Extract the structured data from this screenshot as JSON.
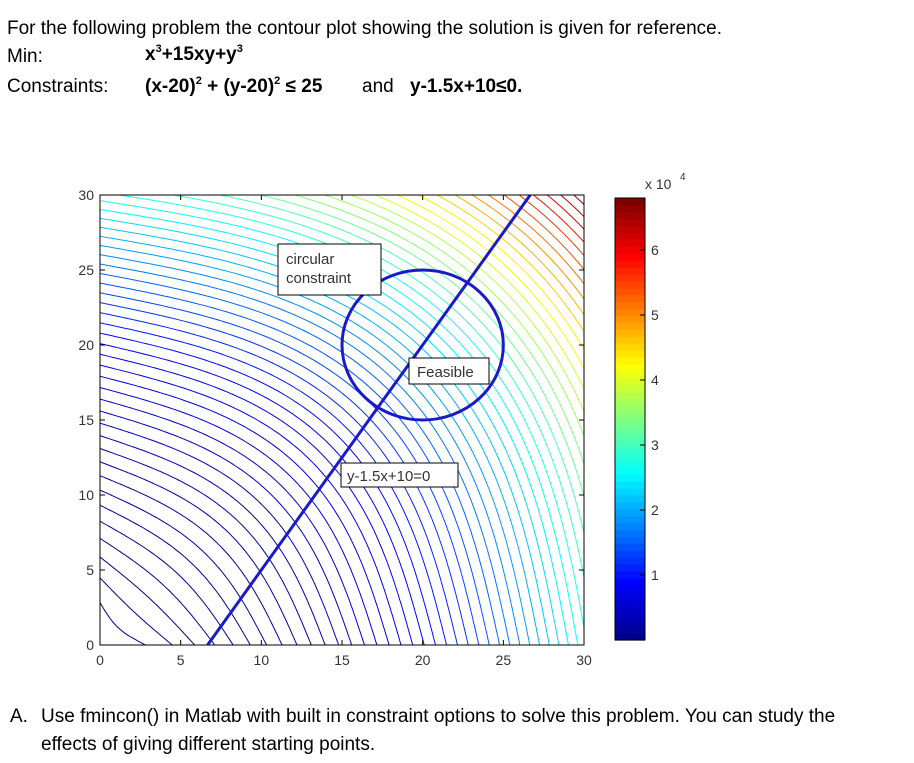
{
  "problem": {
    "intro": "For the following problem the contour plot showing the solution is given for reference.",
    "min_label": "Min:",
    "objective": {
      "p1": "x",
      "s1": "3",
      "p2": "+15xy+y",
      "s2": "3"
    },
    "constraints_label": "Constraints:",
    "constraint1": {
      "p1": "(x-20)",
      "s1": "2",
      "p2": " + (y-20)",
      "s2": "2",
      "p3": " ≤ 25"
    },
    "and": "and",
    "constraint2": "y-1.5x+10≤0."
  },
  "question": {
    "letter": "A.",
    "text": "Use fmincon() in Matlab with built in constraint options to solve this problem. You can study the effects of giving different starting points."
  },
  "chart_data": {
    "type": "contour",
    "function": "x^3+15xy+y^3",
    "xlim": [
      0,
      30
    ],
    "ylim": [
      0,
      30
    ],
    "xticks": [
      "0",
      "5",
      "10",
      "15",
      "20",
      "25",
      "30"
    ],
    "yticks": [
      "0",
      "5",
      "10",
      "15",
      "20",
      "25",
      "30"
    ],
    "colorbar": {
      "range": [
        0,
        68000
      ],
      "ticks": [
        "1",
        "2",
        "3",
        "4",
        "5",
        "6"
      ],
      "multiplier_base": "x 10",
      "multiplier_exp": "4",
      "colors": [
        "#00008f",
        "#0000ff",
        "#0080ff",
        "#00ffff",
        "#80ff80",
        "#ffff00",
        "#ff8000",
        "#ff0000",
        "#800000"
      ]
    },
    "circle": {
      "cx": 20,
      "cy": 20,
      "r": 5,
      "color": "#1a1ac8"
    },
    "line": {
      "equation": "y = 1.5x - 10",
      "color": "#1a1ac8"
    },
    "annotations": [
      "circular constraint",
      "Feasible",
      "y-1.5x+10=0"
    ],
    "annotation_lines": {
      "circular": [
        "circular",
        "constraint"
      ],
      "feasible": "Feasible",
      "line": "y-1.5x+10=0"
    }
  }
}
